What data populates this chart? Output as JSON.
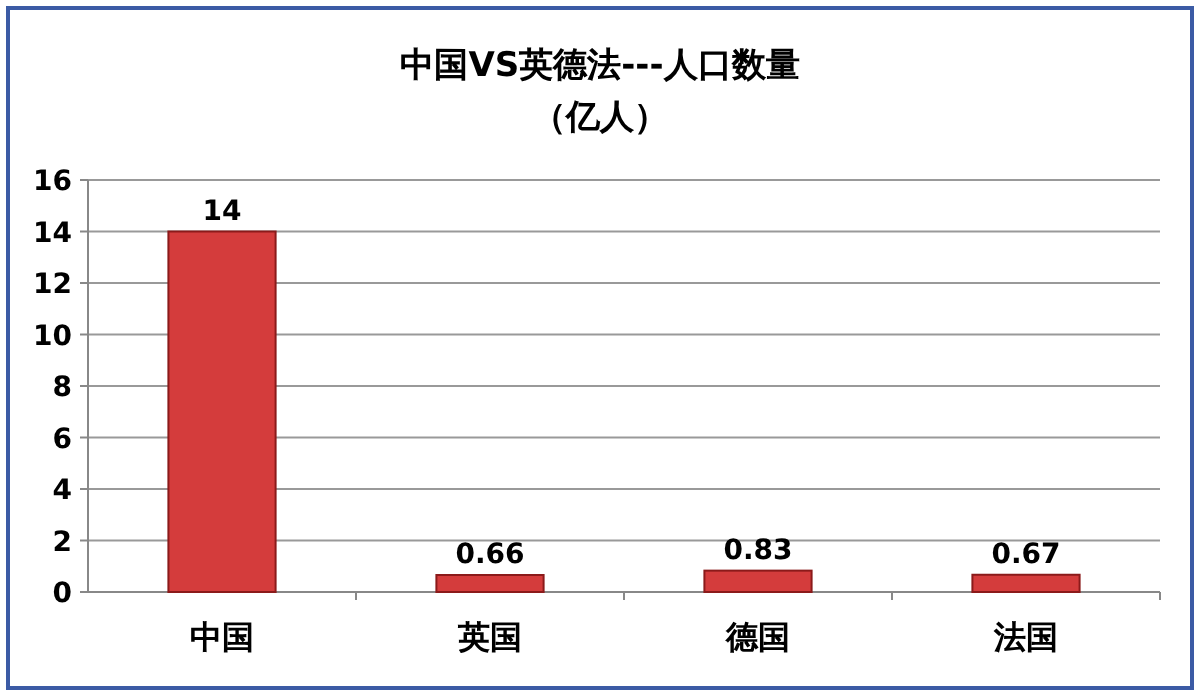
{
  "chart_data": {
    "type": "bar",
    "title": "中国VS英德法---人口数量",
    "subtitle": "（亿人）",
    "categories": [
      "中国",
      "英国",
      "德国",
      "法国"
    ],
    "values": [
      14,
      0.66,
      0.83,
      0.67
    ],
    "color": "#d43c3c",
    "ylim": [
      0,
      16
    ],
    "yticks": [
      0,
      2,
      4,
      6,
      8,
      10,
      12,
      14,
      16
    ],
    "grid": "y",
    "data_labels": true
  }
}
